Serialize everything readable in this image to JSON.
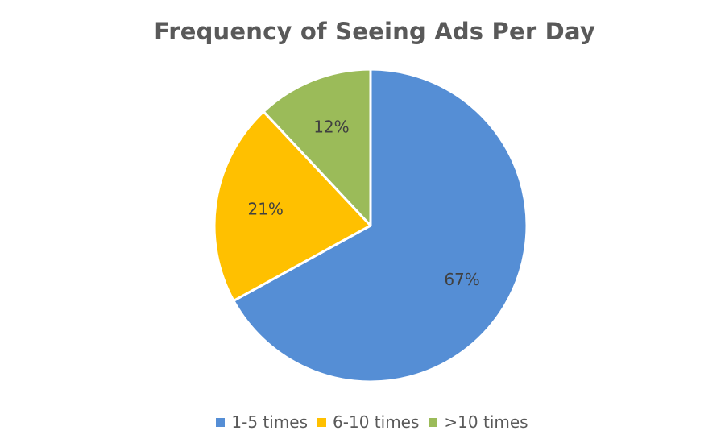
{
  "chart_data": {
    "type": "pie",
    "title": "Frequency of Seeing Ads Per Day",
    "categories": [
      "1-5 times",
      "6-10 times",
      ">10 times"
    ],
    "values": [
      67,
      21,
      12
    ],
    "labels": [
      "67%",
      "21%",
      "12%"
    ],
    "colors": [
      "#558ED5",
      "#FFC000",
      "#9BBB59"
    ],
    "legend_position": "bottom",
    "start": "12 o'clock",
    "direction": "clockwise"
  }
}
